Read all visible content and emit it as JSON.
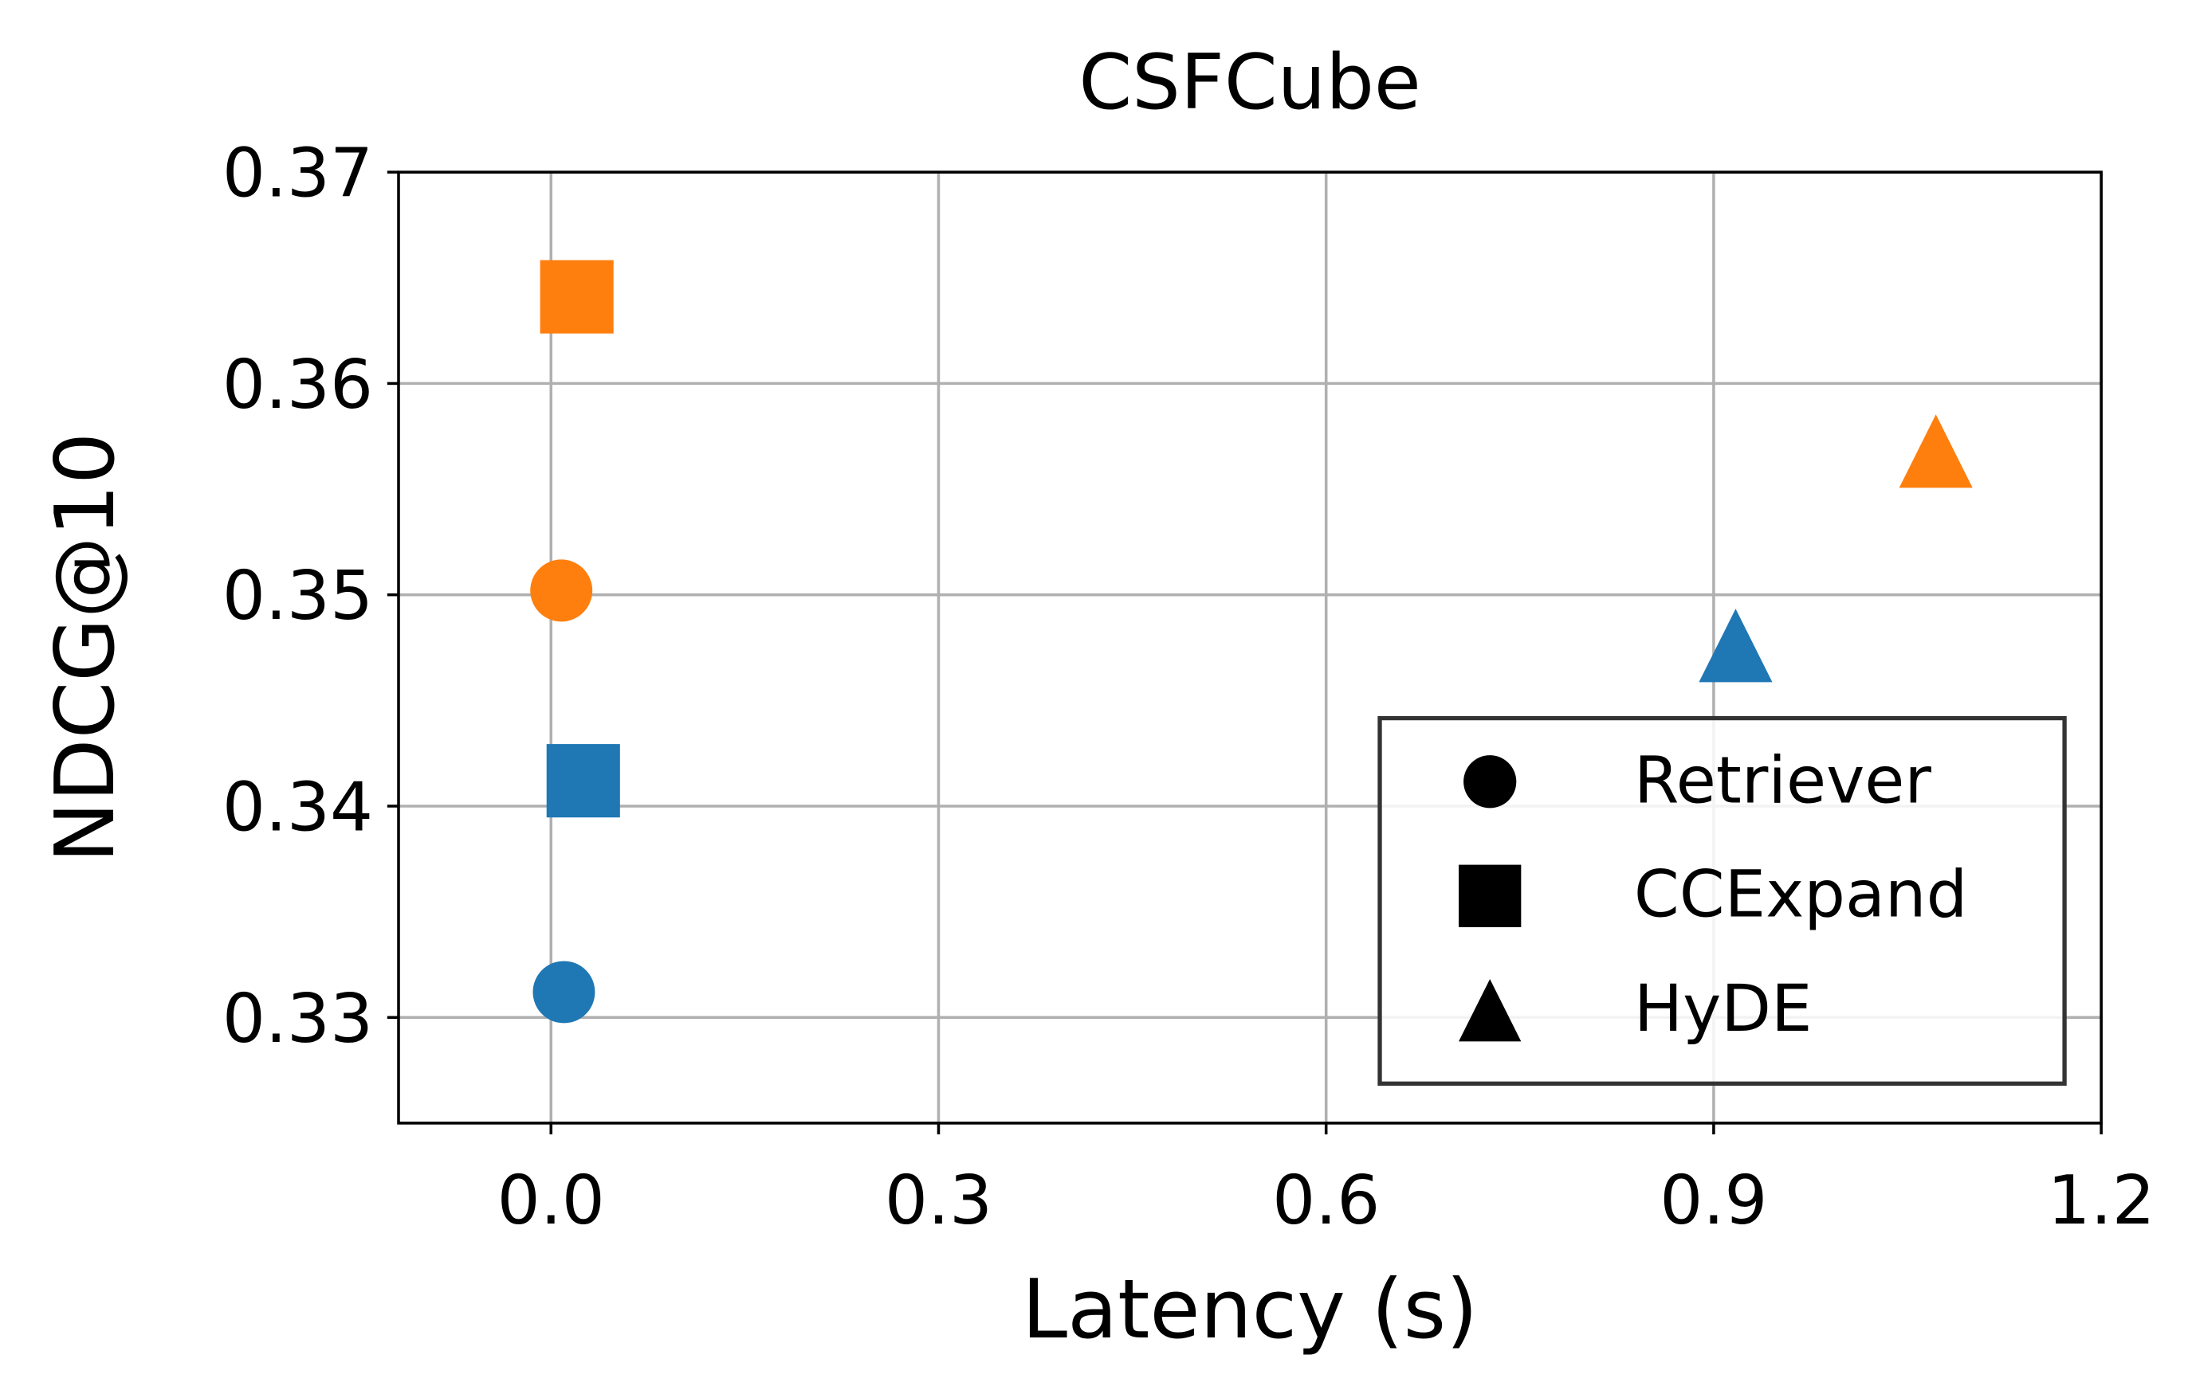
{
  "chart_data": {
    "type": "scatter",
    "title": "CSFCube",
    "x_label": "Latency (s)",
    "y_label": "NDCG@10",
    "xlim": [
      -0.118,
      1.2
    ],
    "xticks": [
      {
        "value": 0,
        "label": "0.0"
      },
      0.3,
      0.6,
      0.9,
      1.2
    ],
    "ylim": [
      0.325,
      0.37
    ],
    "yticks": [
      0.33,
      0.34,
      0.35,
      0.36,
      0.37
    ],
    "grid": true,
    "legend_position": "lower right",
    "series": [
      {
        "name": "Retriever",
        "marker": "circle",
        "x": [
          0.01,
          0.008
        ],
        "values": [
          0.3312,
          0.3502
        ],
        "colors": [
          "#1f77b4",
          "#ff7f0e"
        ]
      },
      {
        "name": "CCExpand",
        "marker": "square",
        "x": [
          0.025,
          0.02
        ],
        "values": [
          0.3412,
          0.3641
        ],
        "colors": [
          "#1f77b4",
          "#ff7f0e"
        ]
      },
      {
        "name": "HyDE",
        "marker": "triangle",
        "x": [
          0.917,
          1.072
        ],
        "values": [
          0.3476,
          0.3568
        ],
        "colors": [
          "#1f77b4",
          "#ff7f0e"
        ]
      }
    ]
  }
}
